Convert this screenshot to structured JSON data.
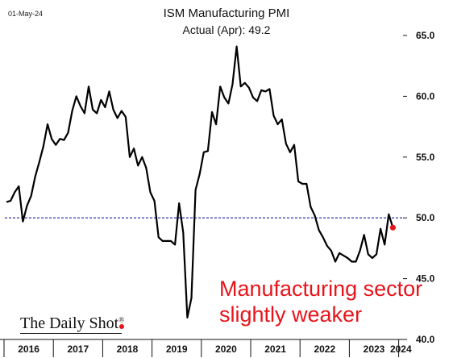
{
  "chart_data": {
    "type": "line",
    "date_label": "01-May-24",
    "title": "ISM Manufacturing PMI",
    "subtitle": "Actual (Apr):  49.2",
    "annotation_line1": "Manufacturing sector",
    "annotation_line2": "slightly weaker",
    "source": "The Daily Shot",
    "source_mark": "®",
    "ylim": [
      40,
      65
    ],
    "yticks": [
      "65.0",
      "60.0",
      "55.0",
      "50.0",
      "45.0",
      "40.0"
    ],
    "xticks": [
      "2016",
      "2017",
      "2018",
      "2019",
      "2020",
      "2021",
      "2022",
      "2023",
      "2024"
    ],
    "reference_line": 50,
    "colors": {
      "line": "#000000",
      "reference": "#1a1aa6",
      "latest": "#e8141b"
    },
    "series": [
      {
        "x_start": "2016-01",
        "values": [
          51.3,
          51.4,
          52.1,
          52.6,
          49.7,
          51.0,
          51.8,
          53.4,
          54.6,
          55.9,
          57.7,
          56.5,
          56.0,
          56.5,
          56.4,
          57.0,
          58.8,
          60.0,
          59.2,
          58.6,
          60.8,
          58.9,
          58.6,
          59.7,
          59.1,
          60.4,
          58.9,
          58.2,
          58.8,
          58.3,
          55.0,
          55.7,
          54.3,
          55.0,
          54.1,
          52.1,
          51.4,
          48.4,
          48.1,
          48.1,
          48.1,
          47.8,
          51.2,
          48.8,
          41.8,
          43.4,
          52.3,
          53.6,
          55.4,
          55.5,
          58.7,
          57.7,
          60.8,
          59.9,
          59.4,
          61.0,
          64.1,
          60.8,
          61.1,
          60.7,
          59.9,
          59.6,
          60.5,
          60.4,
          60.6,
          58.4,
          57.7,
          58.1,
          56.1,
          55.4,
          56.0,
          53.0,
          52.8,
          52.8,
          50.9,
          50.2,
          49.0,
          48.4,
          47.7,
          47.3,
          46.4,
          47.1,
          46.9,
          46.7,
          46.4,
          46.4,
          47.3,
          48.6,
          47.0,
          46.7,
          47.0,
          49.1,
          47.8,
          50.3,
          49.2
        ]
      }
    ]
  }
}
